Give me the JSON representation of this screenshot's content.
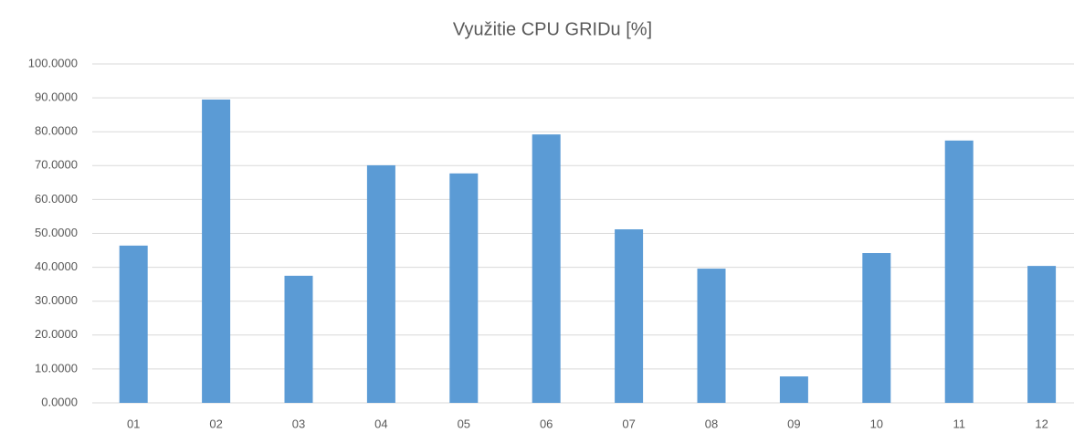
{
  "chart_data": {
    "type": "bar",
    "title": "Využitie CPU GRIDu [%]",
    "categories": [
      "01",
      "02",
      "03",
      "04",
      "05",
      "06",
      "07",
      "08",
      "09",
      "10",
      "11",
      "12"
    ],
    "values": [
      46.4,
      89.5,
      37.5,
      70.1,
      67.7,
      79.2,
      51.2,
      39.6,
      7.8,
      44.2,
      77.4,
      40.4
    ],
    "color": "#5b9bd5",
    "ylim": [
      0,
      100
    ],
    "yticks": [
      {
        "value": 0,
        "label": "0.0000"
      },
      {
        "value": 10,
        "label": "10.0000"
      },
      {
        "value": 20,
        "label": "20.0000"
      },
      {
        "value": 30,
        "label": "30.0000"
      },
      {
        "value": 40,
        "label": "40.0000"
      },
      {
        "value": 50,
        "label": "50.0000"
      },
      {
        "value": 60,
        "label": "60.0000"
      },
      {
        "value": 70,
        "label": "70.0000"
      },
      {
        "value": 80,
        "label": "80.0000"
      },
      {
        "value": 90,
        "label": "90.0000"
      },
      {
        "value": 100,
        "label": "100.0000"
      }
    ],
    "grid": true
  }
}
